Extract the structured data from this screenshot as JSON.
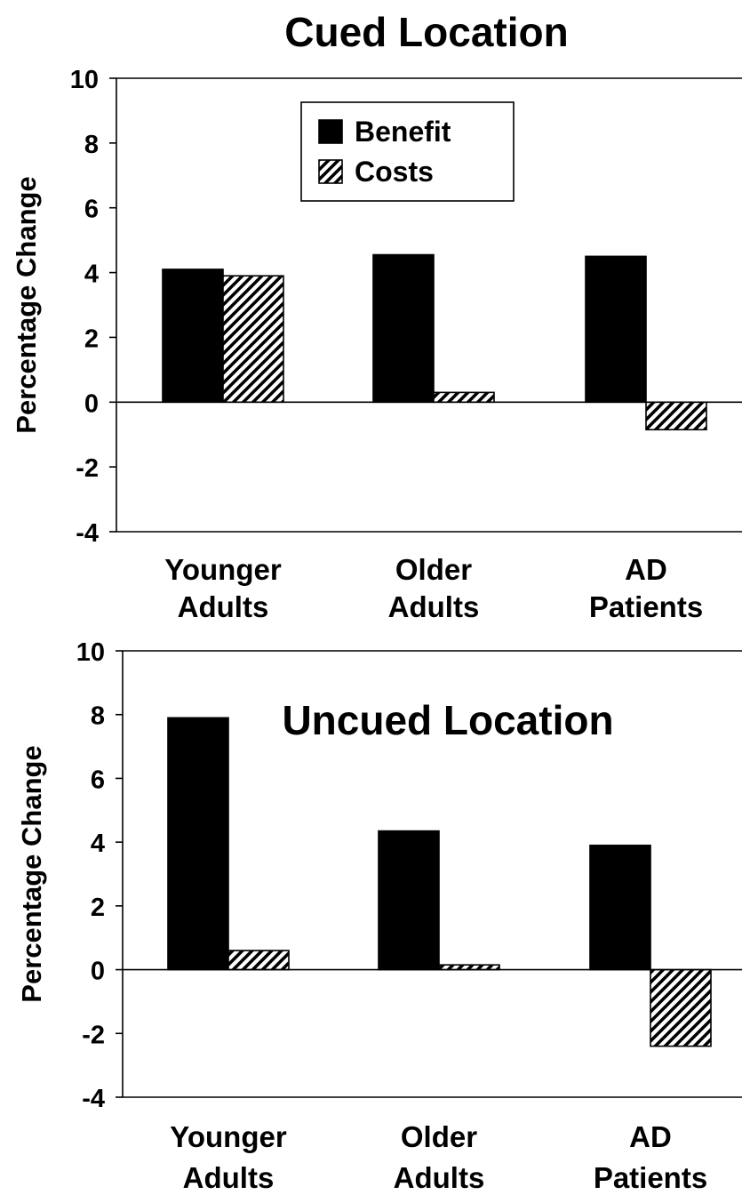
{
  "chart_data": [
    {
      "type": "bar",
      "title": "Cued Location",
      "ylabel": "Percentage Change",
      "xlabel": "",
      "ylim": [
        -4,
        10
      ],
      "yticks": [
        10,
        8,
        6,
        4,
        2,
        0,
        -2,
        -4
      ],
      "grid": false,
      "legend_position": "top-center",
      "categories": [
        [
          "Younger",
          "Adults"
        ],
        [
          "Older",
          "Adults"
        ],
        [
          "AD",
          "Patients"
        ]
      ],
      "series": [
        {
          "name": "Benefit",
          "values": [
            4.1,
            4.55,
            4.5
          ],
          "color": "#000000",
          "pattern": "solid"
        },
        {
          "name": "Costs",
          "values": [
            3.9,
            0.3,
            -0.85
          ],
          "color": "#000000",
          "pattern": "diagonal-hatch"
        }
      ]
    },
    {
      "type": "bar",
      "title": "Uncued Location",
      "ylabel": "Percentage Change",
      "xlabel": "",
      "ylim": [
        -4,
        10
      ],
      "yticks": [
        10,
        8,
        6,
        4,
        2,
        0,
        -2,
        -4
      ],
      "grid": false,
      "title_position": "inside-top",
      "categories": [
        [
          "Younger",
          "Adults"
        ],
        [
          "Older",
          "Adults"
        ],
        [
          "AD",
          "Patients"
        ]
      ],
      "series": [
        {
          "name": "Benefit",
          "values": [
            7.9,
            4.35,
            3.9
          ],
          "color": "#000000",
          "pattern": "solid"
        },
        {
          "name": "Costs",
          "values": [
            0.6,
            0.15,
            -2.4
          ],
          "color": "#000000",
          "pattern": "diagonal-hatch"
        }
      ]
    }
  ]
}
